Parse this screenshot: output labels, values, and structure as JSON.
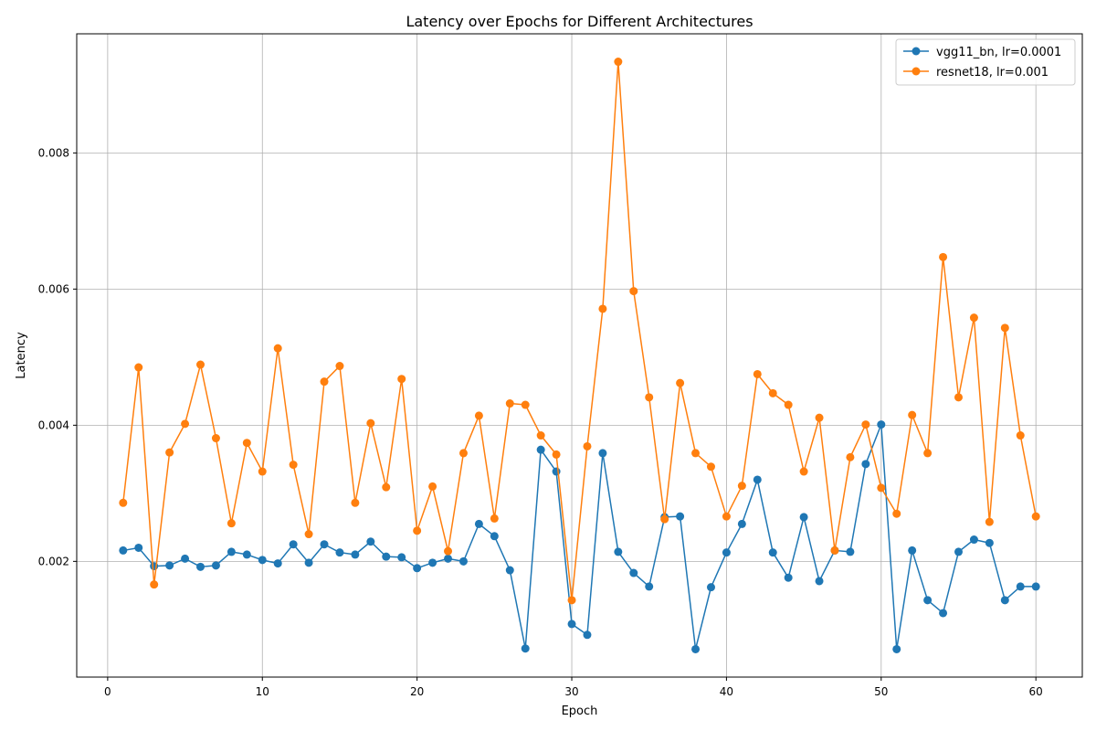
{
  "chart_data": {
    "type": "line",
    "title": "Latency over Epochs for Different Architectures",
    "xlabel": "Epoch",
    "ylabel": "Latency",
    "xlim": [
      -2,
      63
    ],
    "ylim": [
      0.0003,
      0.00975
    ],
    "xticks": [
      0,
      10,
      20,
      30,
      40,
      50,
      60
    ],
    "yticks": [
      0.002,
      0.004,
      0.006,
      0.008
    ],
    "grid": true,
    "legend_position": "top-right",
    "x": [
      1,
      2,
      3,
      4,
      5,
      6,
      7,
      8,
      9,
      10,
      11,
      12,
      13,
      14,
      15,
      16,
      17,
      18,
      19,
      20,
      21,
      22,
      23,
      24,
      25,
      26,
      27,
      28,
      29,
      30,
      31,
      32,
      33,
      34,
      35,
      36,
      37,
      38,
      39,
      40,
      41,
      42,
      43,
      44,
      45,
      46,
      47,
      48,
      49,
      50,
      51,
      52,
      53,
      54,
      55,
      56,
      57,
      58,
      59,
      60
    ],
    "series": [
      {
        "name": "vgg11_bn, lr=0.0001",
        "color": "#1f77b4",
        "values": [
          0.00216,
          0.0022,
          0.00193,
          0.00194,
          0.00204,
          0.00192,
          0.00194,
          0.00214,
          0.0021,
          0.00202,
          0.00197,
          0.00225,
          0.00198,
          0.00225,
          0.00213,
          0.0021,
          0.00229,
          0.00207,
          0.00206,
          0.0019,
          0.00198,
          0.00204,
          0.002,
          0.00255,
          0.00237,
          0.00187,
          0.00072,
          0.00364,
          0.00332,
          0.00108,
          0.00092,
          0.00359,
          0.00214,
          0.00183,
          0.00163,
          0.00265,
          0.00266,
          0.00071,
          0.00162,
          0.00213,
          0.00255,
          0.0032,
          0.00213,
          0.00176,
          0.00265,
          0.00171,
          0.00216,
          0.00214,
          0.00343,
          0.00401,
          0.00071,
          0.00216,
          0.00143,
          0.00124,
          0.00214,
          0.00232,
          0.00227,
          0.00143,
          0.00163,
          0.00163
        ]
      },
      {
        "name": "resnet18, lr=0.001",
        "color": "#ff7f0e",
        "values": [
          0.00286,
          0.00485,
          0.00166,
          0.0036,
          0.00402,
          0.00489,
          0.00381,
          0.00256,
          0.00374,
          0.00332,
          0.00513,
          0.00342,
          0.0024,
          0.00464,
          0.00487,
          0.00286,
          0.00403,
          0.00309,
          0.00468,
          0.00245,
          0.0031,
          0.00215,
          0.00359,
          0.00414,
          0.00263,
          0.00432,
          0.0043,
          0.00385,
          0.00357,
          0.00143,
          0.00369,
          0.00571,
          0.00934,
          0.00597,
          0.00441,
          0.00262,
          0.00462,
          0.00359,
          0.00339,
          0.00266,
          0.00311,
          0.00475,
          0.00447,
          0.0043,
          0.00332,
          0.00411,
          0.00216,
          0.00353,
          0.00401,
          0.00308,
          0.0027,
          0.00415,
          0.00359,
          0.00647,
          0.00441,
          0.00558,
          0.00258,
          0.00543,
          0.00385,
          0.00266
        ]
      }
    ]
  }
}
